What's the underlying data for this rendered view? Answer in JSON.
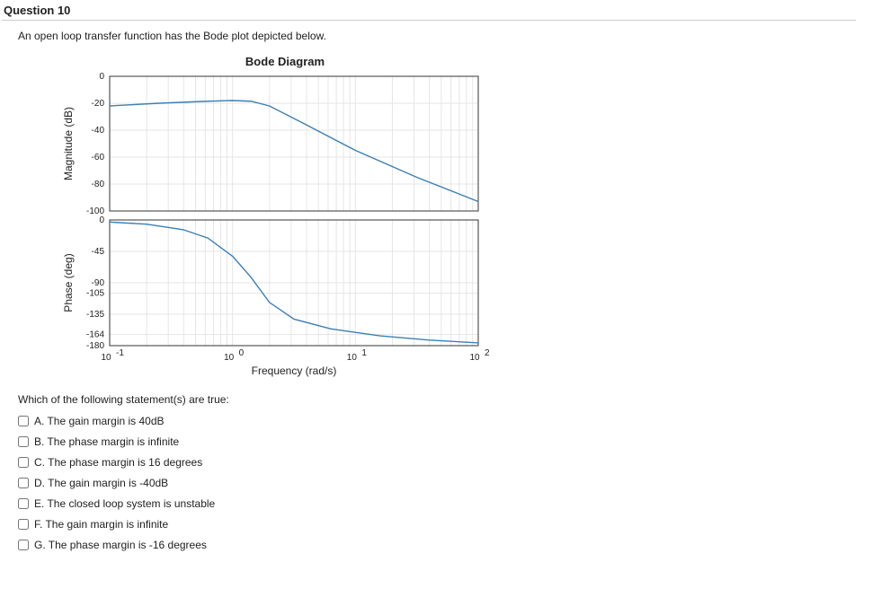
{
  "question": {
    "heading": "Question 10",
    "stem": "An open loop transfer function has the Bode plot depicted below.",
    "prompt": "Which of the following statement(s) are true:"
  },
  "chart": {
    "title": "Bode Diagram",
    "xlabel": "Frequency  (rad/s)",
    "background_color": "#ffffff",
    "grid_color": "#e6e6e6",
    "axis_color": "#333333",
    "line_color": "#3b7fb5",
    "line_width": 1.4,
    "x_log_min": -1,
    "x_log_max": 2,
    "x_tick_labels": [
      "10",
      "10",
      "10",
      "10"
    ],
    "x_tick_exponents": [
      "-1",
      "0",
      "1",
      "2"
    ],
    "magnitude": {
      "ylabel": "Magnitude (dB)",
      "ymin": -100,
      "ymax": 0,
      "yticks": [
        0,
        -20,
        -40,
        -60,
        -80,
        -100
      ],
      "series": [
        {
          "logx": -1.0,
          "y": -22
        },
        {
          "logx": -0.6,
          "y": -20
        },
        {
          "logx": -0.2,
          "y": -18.5
        },
        {
          "logx": 0.0,
          "y": -18
        },
        {
          "logx": 0.15,
          "y": -18.5
        },
        {
          "logx": 0.3,
          "y": -22
        },
        {
          "logx": 0.6,
          "y": -36
        },
        {
          "logx": 1.0,
          "y": -55
        },
        {
          "logx": 1.5,
          "y": -75
        },
        {
          "logx": 2.0,
          "y": -93
        }
      ]
    },
    "phase": {
      "ylabel": "Phase (deg)",
      "ymin": -180,
      "ymax": 0,
      "yticks": [
        0,
        -45,
        -90,
        -105,
        -135,
        -164,
        -180
      ],
      "series": [
        {
          "logx": -1.0,
          "y": -3
        },
        {
          "logx": -0.7,
          "y": -6
        },
        {
          "logx": -0.4,
          "y": -14
        },
        {
          "logx": -0.2,
          "y": -26
        },
        {
          "logx": 0.0,
          "y": -52
        },
        {
          "logx": 0.15,
          "y": -82
        },
        {
          "logx": 0.3,
          "y": -118
        },
        {
          "logx": 0.5,
          "y": -142
        },
        {
          "logx": 0.8,
          "y": -156
        },
        {
          "logx": 1.2,
          "y": -166
        },
        {
          "logx": 1.6,
          "y": -172
        },
        {
          "logx": 2.0,
          "y": -176
        }
      ]
    }
  },
  "options": [
    {
      "key": "A",
      "label": "A. The gain margin is 40dB",
      "checked": false
    },
    {
      "key": "B",
      "label": "B. The phase margin is infinite",
      "checked": false
    },
    {
      "key": "C",
      "label": "C. The phase margin is 16 degrees",
      "checked": false
    },
    {
      "key": "D",
      "label": "D. The gain margin is -40dB",
      "checked": false
    },
    {
      "key": "E",
      "label": "E. The closed loop system is unstable",
      "checked": false
    },
    {
      "key": "F",
      "label": "F. The gain margin is infinite",
      "checked": false
    },
    {
      "key": "G",
      "label": "G. The phase margin is -16 degrees",
      "checked": false
    }
  ]
}
